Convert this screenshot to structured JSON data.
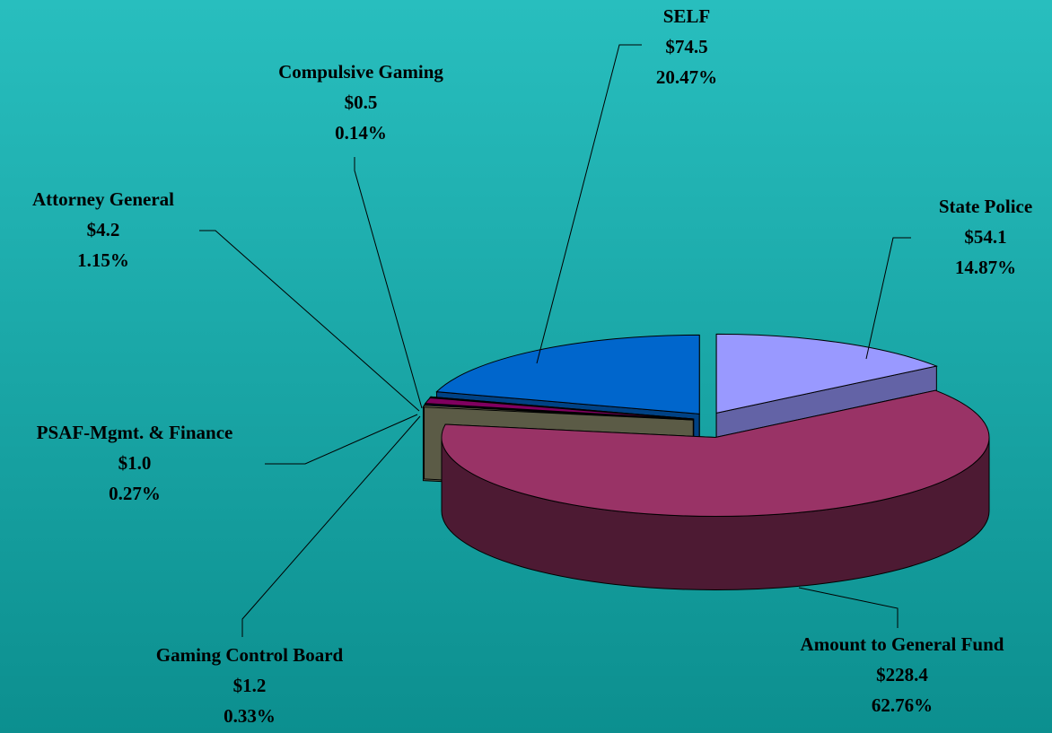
{
  "chart_data": {
    "type": "pie3d",
    "categories": [
      "State Police",
      "Amount to General Fund",
      "Gaming Control  Board",
      "PSAF-Mgmt. & Finance",
      "Attorney General",
      "Compulsive Gaming",
      "SELF"
    ],
    "values": [
      54.1,
      228.4,
      1.2,
      1.0,
      4.2,
      0.5,
      74.5
    ],
    "value_labels": [
      "$54.1",
      "$228.4",
      "$1.2",
      "$1.0",
      "$4.2",
      "$0.5",
      "$74.5"
    ],
    "percentages": [
      14.87,
      62.76,
      0.33,
      0.27,
      1.15,
      0.14,
      20.47
    ],
    "percentage_labels": [
      "14.87%",
      "62.76%",
      "0.33%",
      "0.27%",
      "1.15%",
      "0.14%",
      "20.47%"
    ],
    "colors": [
      "#9999ff",
      "#993366",
      "#8c8c6c",
      "#1a1a5c",
      "#800060",
      "#333399",
      "#0066cc"
    ]
  }
}
